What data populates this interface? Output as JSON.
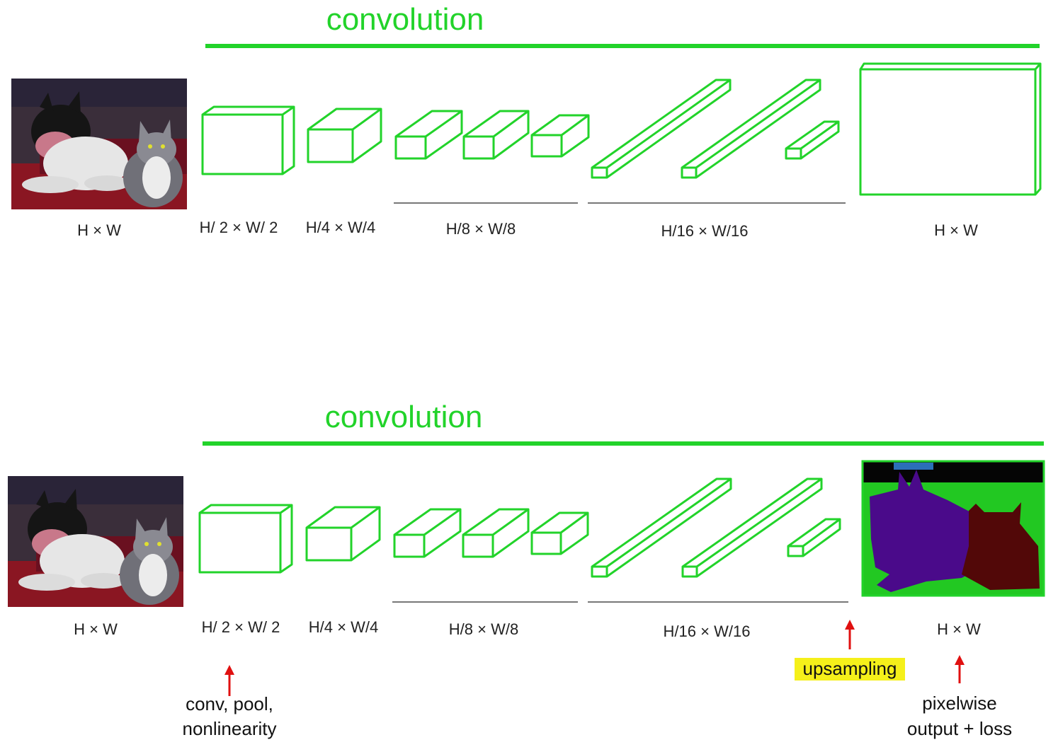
{
  "panels": [
    {
      "title": "convolution",
      "input_label": "H × W",
      "stage_labels": [
        "H/ 2 × W/ 2",
        "H/4 × W/4",
        "H/8 × W/8",
        "H/16 × W/16"
      ],
      "output_label": "H × W"
    },
    {
      "title": "convolution",
      "input_label": "H × W",
      "stage_labels": [
        "H/ 2 × W/ 2",
        "H/4 × W/4",
        "H/8 × W/8",
        "H/16 × W/16"
      ],
      "output_label": "H × W",
      "annotations": {
        "conv_line1": "conv, pool,",
        "conv_line2": "nonlinearity",
        "upsampling": "upsampling",
        "pixel_line1": "pixelwise",
        "pixel_line2": "output + loss"
      }
    }
  ],
  "colors": {
    "network": "#22d32a",
    "arrow": "#e01010",
    "highlight": "#f5f01a",
    "seg_background": "#22c822",
    "seg_dog": "#4a0a8a",
    "seg_cat": "#520808",
    "seg_top": "#050505"
  }
}
